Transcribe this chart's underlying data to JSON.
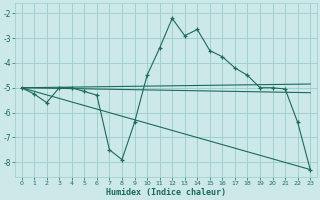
{
  "bg_color": "#cce8e8",
  "grid_color": "#99cccc",
  "line_color": "#1a6b5a",
  "xlabel": "Humidex (Indice chaleur)",
  "ylim": [
    -8.6,
    -1.6
  ],
  "xlim": [
    -0.5,
    23.5
  ],
  "yticks": [
    -8,
    -7,
    -6,
    -5,
    -4,
    -3,
    -2
  ],
  "xticks": [
    0,
    1,
    2,
    3,
    4,
    5,
    6,
    7,
    8,
    9,
    10,
    11,
    12,
    13,
    14,
    15,
    16,
    17,
    18,
    19,
    20,
    21,
    22,
    23
  ],
  "curve1_x": [
    0,
    1,
    2,
    3,
    4,
    5,
    6,
    7,
    8,
    9,
    10,
    11,
    12,
    13,
    14,
    15,
    16,
    17,
    18,
    19,
    20,
    21,
    22,
    23
  ],
  "curve1_y": [
    -5.0,
    -5.25,
    -5.6,
    -5.0,
    -5.0,
    -5.15,
    -5.3,
    -7.5,
    -7.9,
    -6.4,
    -4.5,
    -3.4,
    -2.2,
    -2.9,
    -2.65,
    -3.5,
    -3.75,
    -4.2,
    -4.5,
    -5.0,
    -5.0,
    -5.05,
    -6.4,
    -8.3
  ],
  "curve2_x": [
    0,
    23
  ],
  "curve2_y": [
    -5.0,
    -4.85
  ],
  "curve3_x": [
    0,
    23
  ],
  "curve3_y": [
    -5.0,
    -5.2
  ],
  "curve4_x": [
    0,
    23
  ],
  "curve4_y": [
    -5.0,
    -8.3
  ]
}
